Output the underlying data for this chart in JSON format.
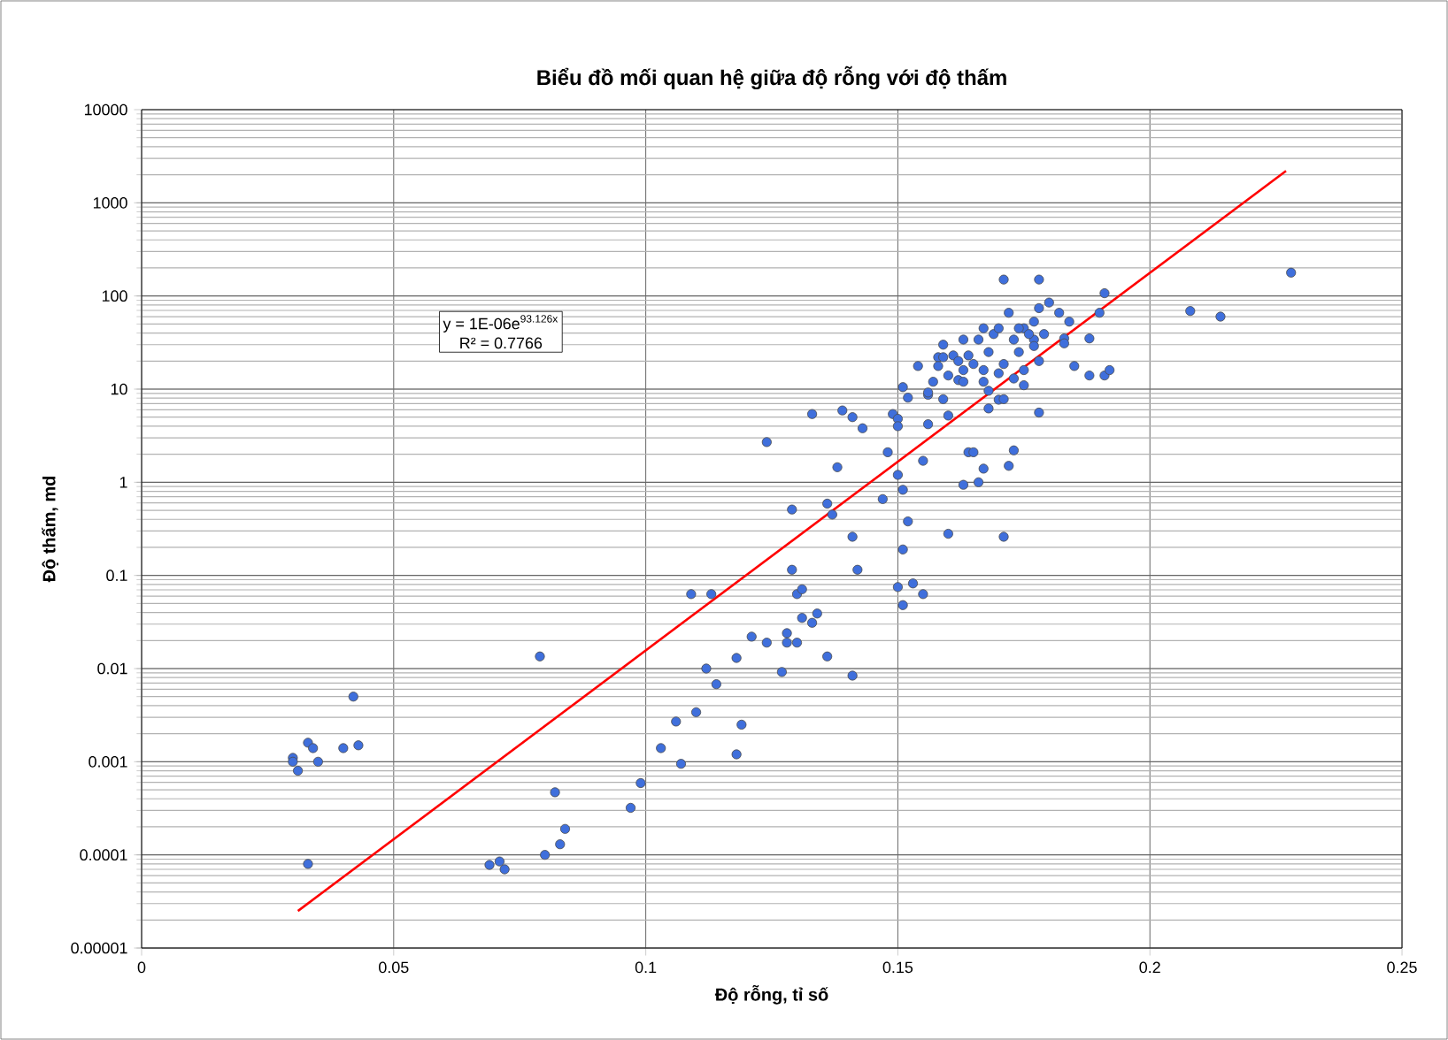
{
  "chart_data": {
    "type": "scatter",
    "title": "Biểu đồ mối quan hệ giữa độ rỗng với độ thấm",
    "xlabel": "Độ rỗng, tỉ số",
    "ylabel": "Độ thấm, md",
    "log": "y",
    "grid": true,
    "xlim": [
      0,
      0.25
    ],
    "xticks": [
      0,
      0.05,
      0.1,
      0.15,
      0.2,
      0.25
    ],
    "ylim": [
      1e-05,
      10000
    ],
    "yticks": [
      {
        "value": 1e-05,
        "label": "0.00001"
      },
      {
        "value": 0.0001,
        "label": "0.0001"
      },
      {
        "value": 0.001,
        "label": "0.001"
      },
      {
        "value": 0.01,
        "label": "0.01"
      },
      {
        "value": 0.1,
        "label": "0.1"
      },
      {
        "value": 1,
        "label": "1"
      },
      {
        "value": 10,
        "label": "10"
      },
      {
        "value": 100,
        "label": "100"
      },
      {
        "value": 1000,
        "label": "1000"
      },
      {
        "value": 10000,
        "label": "10000"
      }
    ],
    "annotations": [
      "y = 1E-06e$^{93.126x}$",
      "R² = 0.7766"
    ],
    "series": [
      {
        "color": "#3f6fdc",
        "marker": "circle",
        "x": [
          0.03,
          0.031,
          0.033,
          0.034,
          0.03,
          0.035,
          0.04,
          0.043,
          0.042,
          0.033,
          0.079,
          0.082,
          0.099,
          0.097,
          0.084,
          0.083,
          0.08,
          0.069,
          0.071,
          0.072,
          0.124,
          0.133,
          0.139,
          0.141,
          0.143,
          0.138,
          0.136,
          0.137,
          0.129,
          0.141,
          0.129,
          0.142,
          0.109,
          0.113,
          0.13,
          0.131,
          0.131,
          0.134,
          0.133,
          0.121,
          0.124,
          0.128,
          0.128,
          0.13,
          0.118,
          0.136,
          0.112,
          0.127,
          0.141,
          0.114,
          0.11,
          0.106,
          0.119,
          0.107,
          0.118,
          0.103,
          0.148,
          0.15,
          0.151,
          0.147,
          0.152,
          0.151,
          0.15,
          0.153,
          0.155,
          0.151,
          0.149,
          0.15,
          0.15,
          0.156,
          0.155,
          0.151,
          0.152,
          0.156,
          0.159,
          0.16,
          0.16,
          0.171,
          0.178,
          0.191,
          0.154,
          0.178,
          0.164,
          0.165,
          0.173,
          0.172,
          0.167,
          0.166,
          0.163,
          0.171,
          0.158,
          0.159,
          0.161,
          0.163,
          0.166,
          0.167,
          0.169,
          0.17,
          0.172,
          0.175,
          0.177,
          0.178,
          0.18,
          0.182,
          0.184,
          0.183,
          0.188,
          0.185,
          0.188,
          0.191,
          0.192,
          0.19,
          0.183,
          0.178,
          0.174,
          0.171,
          0.17,
          0.175,
          0.175,
          0.173,
          0.167,
          0.165,
          0.163,
          0.162,
          0.163,
          0.16,
          0.158,
          0.157,
          0.156,
          0.168,
          0.167,
          0.17,
          0.168,
          0.171,
          0.177,
          0.177,
          0.173,
          0.174,
          0.176,
          0.179,
          0.159,
          0.162,
          0.164,
          0.168,
          0.208,
          0.214,
          0.228
        ],
        "values": [
          0.0011,
          0.0008,
          0.0016,
          0.0014,
          0.001,
          0.001,
          0.0014,
          0.0015,
          0.005,
          8e-05,
          0.0135,
          0.00047,
          0.00059,
          0.00032,
          0.00019,
          0.00013,
          0.0001,
          7.8e-05,
          8.5e-05,
          7e-05,
          2.7,
          5.4,
          5.9,
          5.0,
          3.8,
          1.45,
          0.59,
          0.45,
          0.51,
          0.26,
          0.115,
          0.115,
          0.063,
          0.063,
          0.063,
          0.071,
          0.035,
          0.039,
          0.031,
          0.022,
          0.019,
          0.019,
          0.024,
          0.019,
          0.013,
          0.0135,
          0.01,
          0.0092,
          0.0084,
          0.0068,
          0.0034,
          0.0027,
          0.0025,
          0.00095,
          0.0012,
          0.0014,
          2.1,
          1.2,
          0.83,
          0.66,
          0.38,
          0.19,
          0.075,
          0.082,
          0.063,
          0.048,
          5.4,
          4.8,
          4.0,
          4.2,
          1.7,
          10.5,
          8.1,
          8.7,
          7.8,
          5.2,
          0.28,
          150,
          150,
          107,
          17.7,
          5.6,
          2.1,
          2.1,
          2.2,
          1.5,
          1.4,
          1.0,
          0.94,
          0.26,
          22,
          30,
          23,
          34,
          34,
          45,
          39,
          45,
          66,
          45,
          53,
          74,
          85,
          66,
          53,
          35,
          35,
          17.7,
          14,
          14,
          16,
          66,
          31,
          20,
          25,
          18.6,
          14.8,
          16,
          11,
          13,
          16,
          18.6,
          16,
          12.5,
          12,
          14,
          17.7,
          12,
          9.2,
          9.6,
          12,
          7.7,
          6.2,
          7.8,
          34,
          29,
          34,
          45,
          39,
          39,
          22,
          20,
          23,
          25,
          69,
          60,
          178
        ]
      },
      {
        "type": "line",
        "color": "#ff0000",
        "marker": "none",
        "x": [
          0.031,
          0.227
        ],
        "values": [
          2.5e-05,
          2200
        ]
      }
    ]
  }
}
